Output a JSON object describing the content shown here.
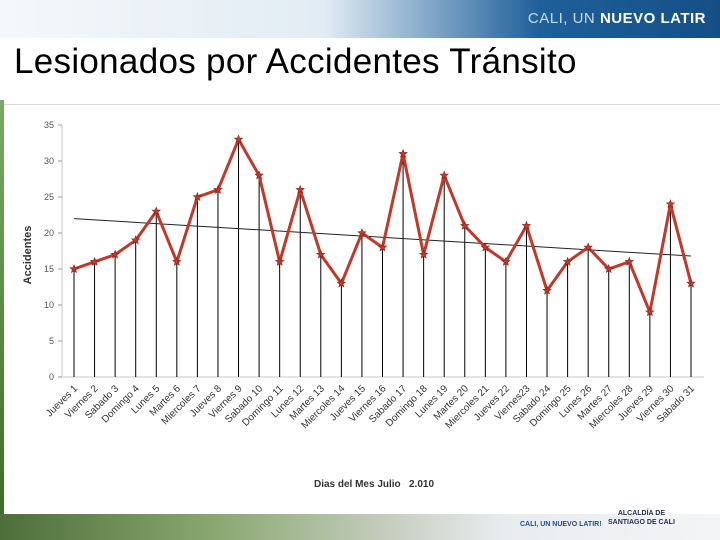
{
  "header": {
    "brand_prefix": "CALI, UN ",
    "brand_bold": "NUEVO LATIR"
  },
  "slide": {
    "title": "Lesionados por Accidentes Tránsito"
  },
  "footer": {
    "logo_small": "CALI, UN NUEVO LATIR!",
    "logo_line1": "ALCALDÍA DE",
    "logo_line2": "SANTIAGO DE CALI"
  },
  "chart_data": {
    "type": "line",
    "ylabel": "Accidentes",
    "xlabel": "Dias del Mes Julio   2.010",
    "ylim": [
      0,
      35
    ],
    "yticks": [
      0,
      5,
      10,
      15,
      20,
      25,
      30,
      35
    ],
    "categories": [
      "Jueves 1",
      "Viernes 2",
      "Sabado 3",
      "Domingo 4",
      "Lunes 5",
      "Martes 6",
      "Miercoles 7",
      "Jueves 8",
      "Viernes 9",
      "Sabado 10",
      "Domingo 11",
      "Lunes 12",
      "Martes 13",
      "Miercoles 14",
      "Jueves 15",
      "Viernes 16",
      "Sabado 17",
      "Domingo 18",
      "Lunes 19",
      "Martes 20",
      "Miercoles 21",
      "Jueves 22",
      "Viernes23",
      "Sabado 24",
      "Domingo 25",
      "Lunes 26",
      "Martes 27",
      "Miercoles 28",
      "Jueves 29",
      "Viernes 30",
      "Sabado 31"
    ],
    "values": [
      15,
      16,
      17,
      19,
      23,
      16,
      25,
      26,
      33,
      28,
      16,
      26,
      17,
      13,
      20,
      18,
      31,
      17,
      28,
      21,
      18,
      16,
      21,
      12,
      16,
      18,
      15,
      16,
      9,
      24,
      13
    ],
    "trendline": {
      "start": 22,
      "end": 16.8
    },
    "colors": {
      "series": "#c0392b",
      "marker": "#c0392b",
      "trend": "#222222",
      "drop": "#000000"
    }
  }
}
